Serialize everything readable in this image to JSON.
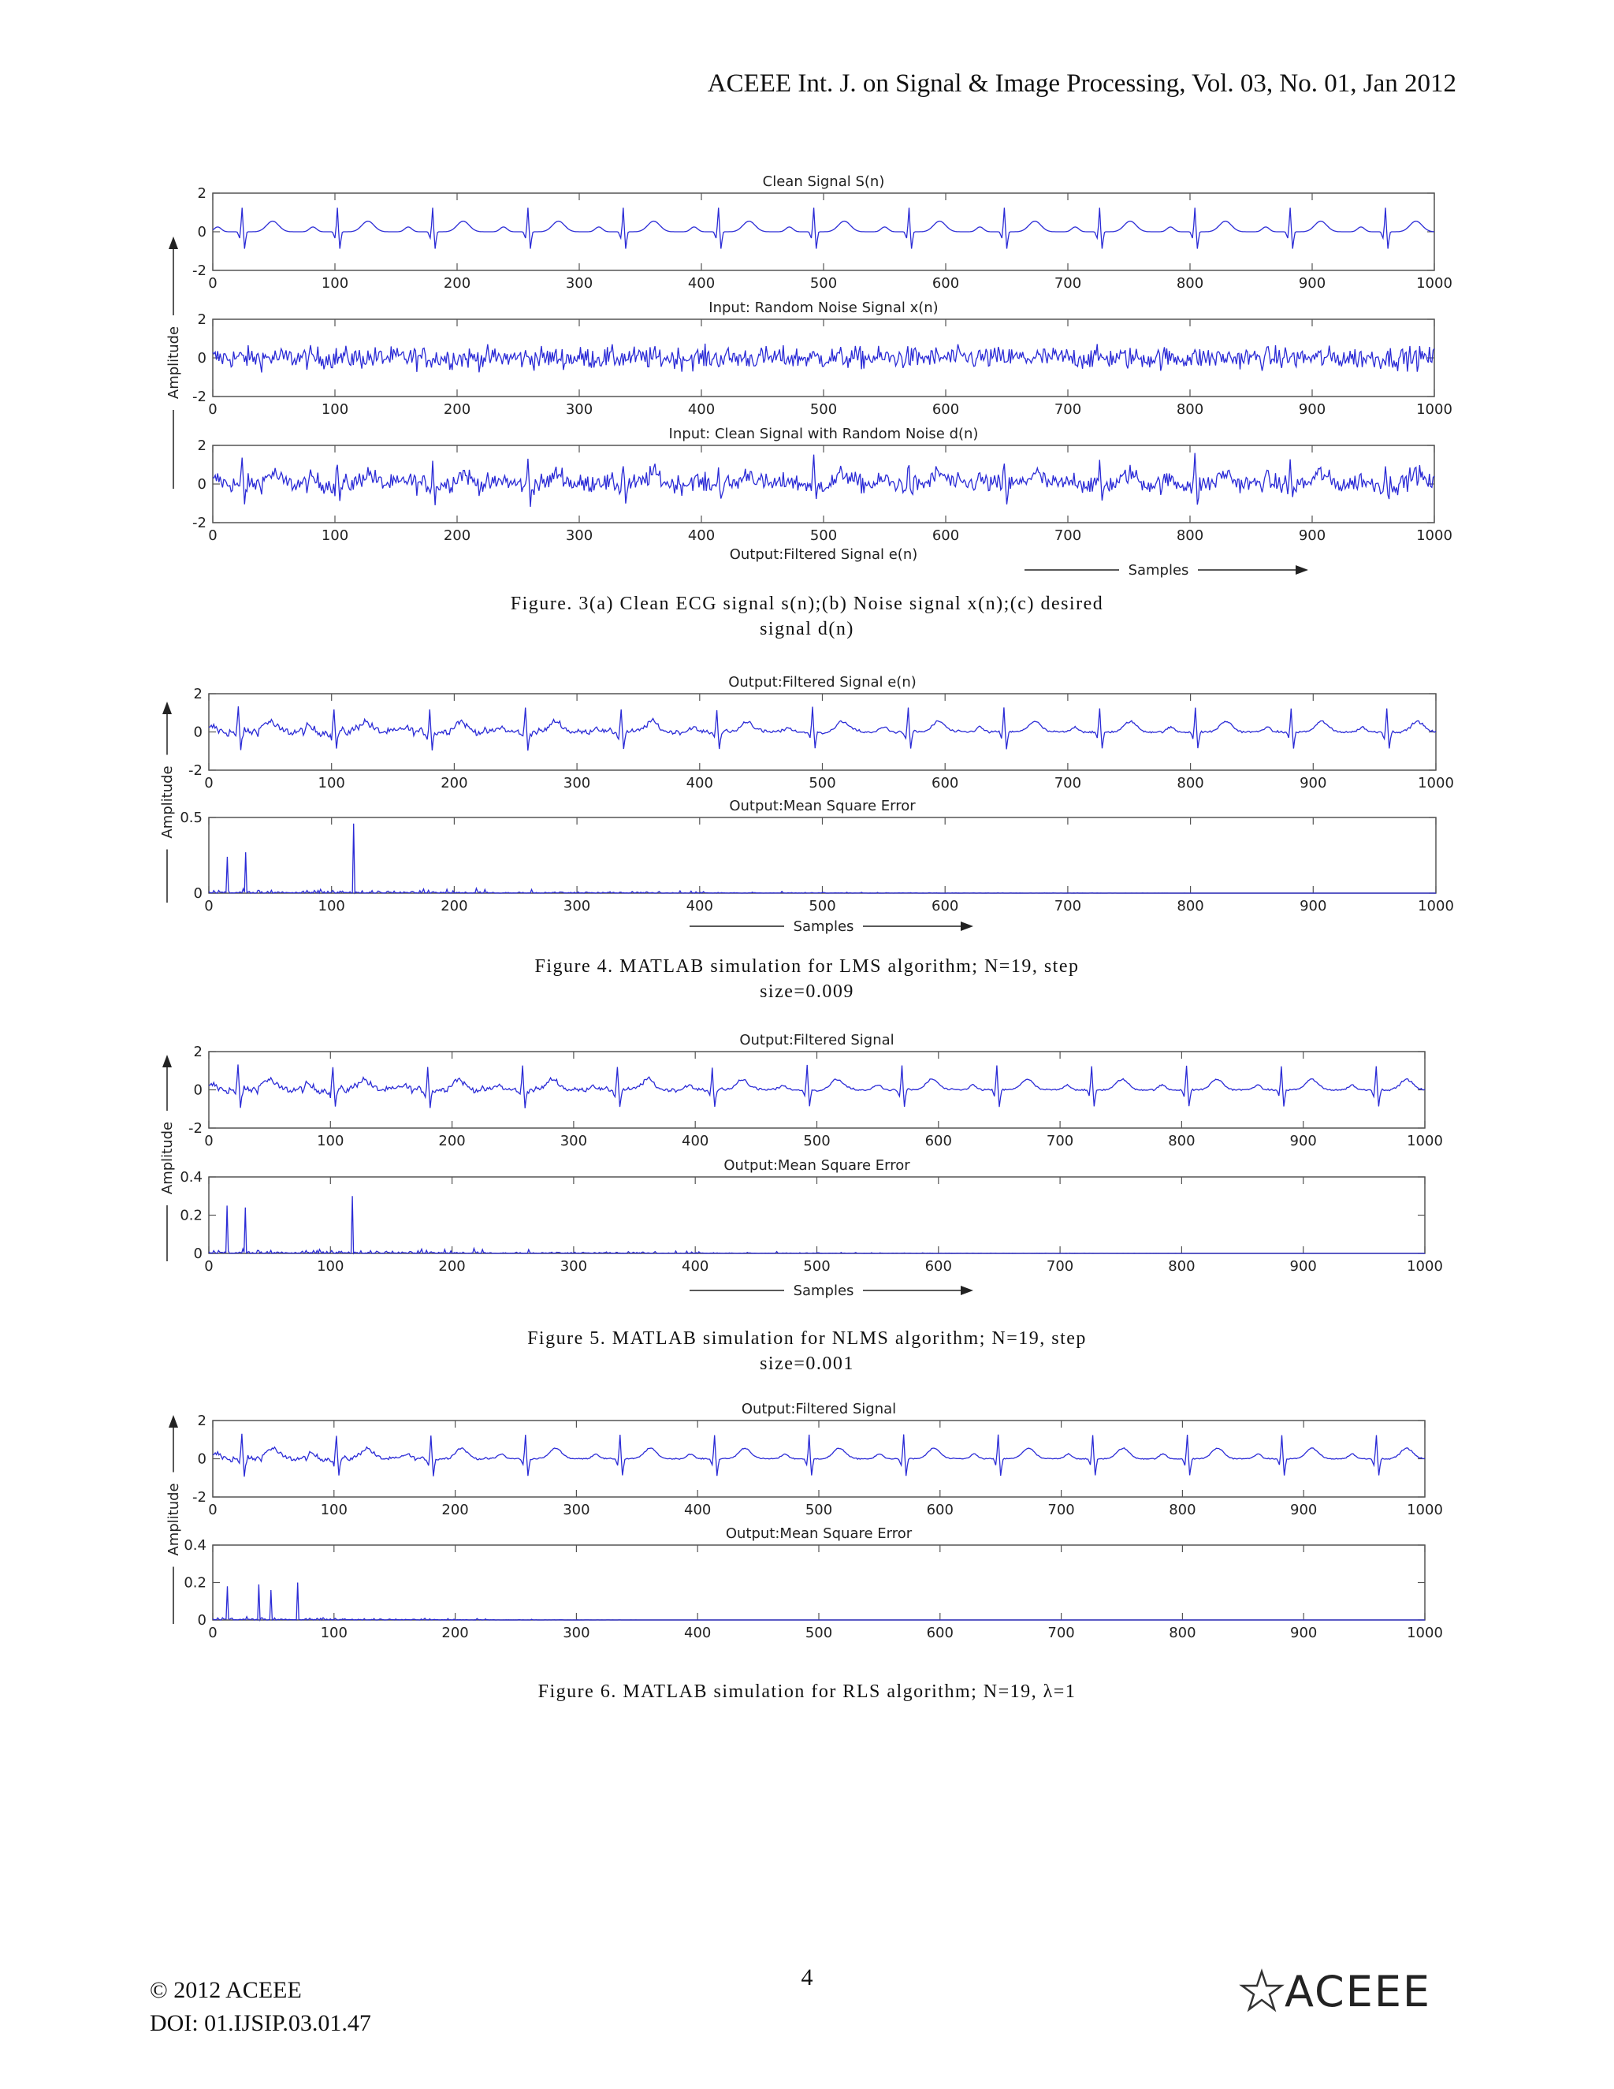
{
  "header": {
    "journal_line": "ACEEE Int. J. on Signal & Image Processing, Vol. 03, No. 01, Jan 2012"
  },
  "figures": [
    {
      "id": "fig3",
      "caption_lines": [
        "Figure. 3(a) Clean ECG signal s(n);(b) Noise signal x(n);(c) desired",
        "signal d(n)"
      ],
      "ylabel": "Amplitude",
      "xlabel": "Samples",
      "bottom_title": "Output:Filtered Signal e(n)"
    },
    {
      "id": "fig4",
      "caption_lines": [
        "Figure 4. MATLAB simulation for LMS algorithm; N=19, step",
        "size=0.009"
      ],
      "ylabel": "Amplitude",
      "xlabel": "Samples"
    },
    {
      "id": "fig5",
      "caption_lines": [
        "Figure 5. MATLAB simulation for NLMS algorithm; N=19, step",
        "size=0.001"
      ],
      "ylabel": "Amplitude",
      "xlabel": "Samples"
    },
    {
      "id": "fig6",
      "caption_lines": [
        "Figure 6. MATLAB simulation for RLS algorithm; N=19, λ=1"
      ],
      "ylabel": "Amplitude"
    }
  ],
  "chart_data": [
    {
      "type": "line",
      "figure": "3(a)",
      "title": "Clean  Signal S(n)",
      "signal": "clean_ecg",
      "xlim": [
        0,
        1000
      ],
      "ylim": [
        -2,
        2
      ],
      "xticks": [
        0,
        100,
        200,
        300,
        400,
        500,
        600,
        700,
        800,
        900,
        1000
      ],
      "yticks": [
        -2,
        0,
        2
      ],
      "ytick_labels": [
        "-2",
        "0",
        "2"
      ],
      "line_color": "#2b2bd6"
    },
    {
      "type": "line",
      "figure": "3(b)",
      "title": "Input: Random Noise Signal x(n)",
      "signal": "noise",
      "xlim": [
        0,
        1000
      ],
      "ylim": [
        -2,
        2
      ],
      "xticks": [
        0,
        100,
        200,
        300,
        400,
        500,
        600,
        700,
        800,
        900,
        1000
      ],
      "yticks": [
        -2,
        0,
        2
      ],
      "ytick_labels": [
        "-2",
        "0",
        "2"
      ],
      "line_color": "#2b2bd6"
    },
    {
      "type": "line",
      "figure": "3(c)",
      "title": "Input: Clean  Signal with Random Noise d(n)",
      "signal": "noisy_ecg",
      "xlim": [
        0,
        1000
      ],
      "ylim": [
        -2,
        2
      ],
      "xticks": [
        0,
        100,
        200,
        300,
        400,
        500,
        600,
        700,
        800,
        900,
        1000
      ],
      "yticks": [
        -2,
        0,
        2
      ],
      "ytick_labels": [
        "-2",
        "0",
        "2"
      ],
      "line_color": "#2b2bd6"
    },
    {
      "type": "line",
      "figure": "4-top",
      "title": "Output:Filtered  Signal e(n)",
      "signal": "filtered_lms",
      "xlim": [
        0,
        1000
      ],
      "ylim": [
        -2,
        2
      ],
      "xticks": [
        0,
        100,
        200,
        300,
        400,
        500,
        600,
        700,
        800,
        900,
        1000
      ],
      "yticks": [
        -2,
        0,
        2
      ],
      "ytick_labels": [
        "-2",
        "0",
        "2"
      ],
      "line_color": "#2b2bd6"
    },
    {
      "type": "line",
      "figure": "4-bottom",
      "title": "Output:Mean Square Error",
      "signal": "mse_lms",
      "xlim": [
        0,
        1000
      ],
      "ylim": [
        0,
        0.5
      ],
      "xticks": [
        0,
        100,
        200,
        300,
        400,
        500,
        600,
        700,
        800,
        900,
        1000
      ],
      "yticks": [
        0,
        0.5
      ],
      "ytick_labels": [
        "0",
        "0.5"
      ],
      "line_color": "#2b2bd6"
    },
    {
      "type": "line",
      "figure": "5-top",
      "title": "Output:Filtered  Signal",
      "signal": "filtered_nlms",
      "xlim": [
        0,
        1000
      ],
      "ylim": [
        -2,
        2
      ],
      "xticks": [
        0,
        100,
        200,
        300,
        400,
        500,
        600,
        700,
        800,
        900,
        1000
      ],
      "yticks": [
        -2,
        0,
        2
      ],
      "ytick_labels": [
        "-2",
        "0",
        "2"
      ],
      "line_color": "#2b2bd6"
    },
    {
      "type": "line",
      "figure": "5-bottom",
      "title": "Output:Mean Square Error",
      "signal": "mse_nlms",
      "xlim": [
        0,
        1000
      ],
      "ylim": [
        0,
        0.4
      ],
      "xticks": [
        0,
        100,
        200,
        300,
        400,
        500,
        600,
        700,
        800,
        900,
        1000
      ],
      "yticks": [
        0,
        0.2,
        0.4
      ],
      "ytick_labels": [
        "0",
        "0.2",
        "0.4"
      ],
      "line_color": "#2b2bd6"
    },
    {
      "type": "line",
      "figure": "6-top",
      "title": "Output:Filtered  Signal",
      "signal": "filtered_rls",
      "xlim": [
        0,
        1000
      ],
      "ylim": [
        -2,
        2
      ],
      "xticks": [
        0,
        100,
        200,
        300,
        400,
        500,
        600,
        700,
        800,
        900,
        1000
      ],
      "yticks": [
        -2,
        0,
        2
      ],
      "ytick_labels": [
        "-2",
        "0",
        "2"
      ],
      "line_color": "#2b2bd6"
    },
    {
      "type": "line",
      "figure": "6-bottom",
      "title": "Output:Mean Square Error",
      "signal": "mse_rls",
      "xlim": [
        0,
        1000
      ],
      "ylim": [
        0,
        0.4
      ],
      "xticks": [
        0,
        100,
        200,
        300,
        400,
        500,
        600,
        700,
        800,
        900,
        1000
      ],
      "yticks": [
        0,
        0.2,
        0.4
      ],
      "ytick_labels": [
        "0",
        "0.2",
        "0.4"
      ],
      "line_color": "#2b2bd6"
    }
  ],
  "footer": {
    "page_number": "4",
    "copyright": "© 2012 ACEEE",
    "doi": "DOI: 01.IJSIP.03.01.47",
    "logo_text": "ACEEE",
    "logo_icon": "star-icon"
  }
}
